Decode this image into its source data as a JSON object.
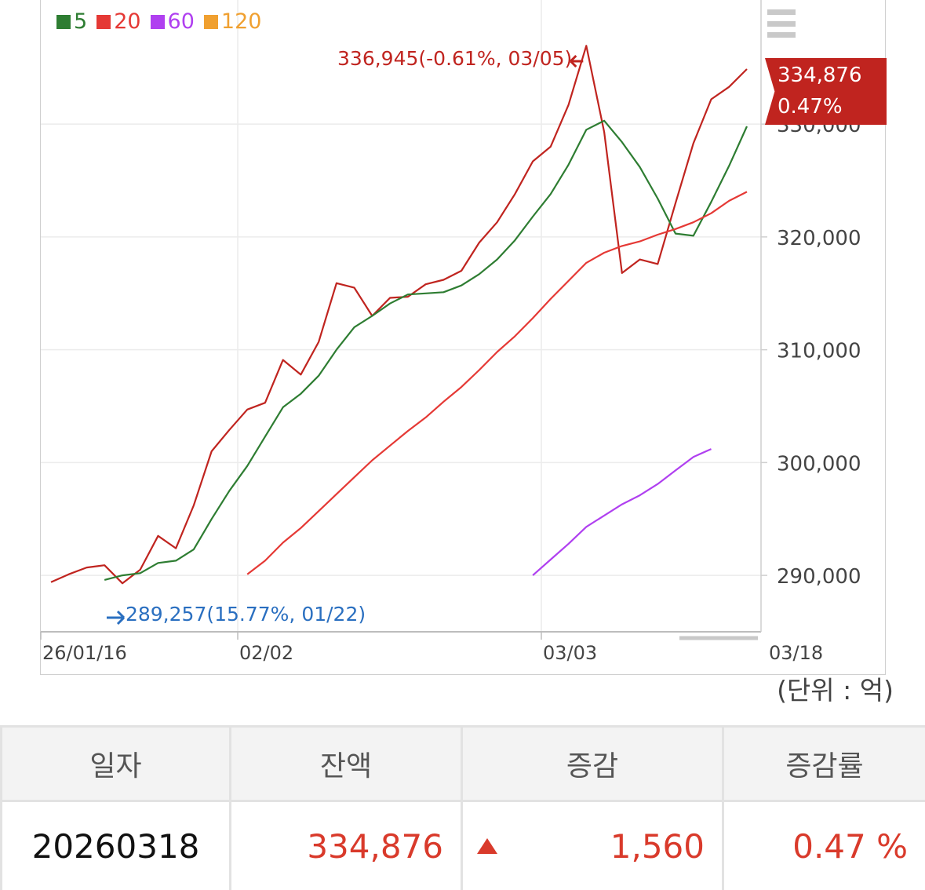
{
  "legend": [
    {
      "label": "5",
      "color": "#2e7d32"
    },
    {
      "label": "20",
      "color": "#e53935"
    },
    {
      "label": "60",
      "color": "#b040f0"
    },
    {
      "label": "120",
      "color": "#f0a030"
    }
  ],
  "price_tag": {
    "value": "334,876",
    "change": "0.47%"
  },
  "annotations": {
    "max_label": "336,945(-0.61%, 03/05)",
    "min_label": "289,257(15.77%, 01/22)"
  },
  "unit_label": "(단위 : 억)",
  "table": {
    "headers": [
      "일자",
      "잔액",
      "증감",
      "증감률"
    ],
    "row": {
      "date": "20260318",
      "balance": "334,876",
      "change": "1,560",
      "rate": "0.47 %"
    }
  },
  "chart_data": {
    "type": "line",
    "x_tick_labels": [
      "26/01/16",
      "02/02",
      "03/03",
      "03/18"
    ],
    "y_tick_labels": [
      "290,000",
      "300,000",
      "310,000",
      "320,000",
      "330,000"
    ],
    "ylim": [
      285000,
      341000
    ],
    "n_points": 40,
    "colors": {
      "price": "#c0241f",
      "ma5": "#2e7d32",
      "ma20": "#e53935",
      "ma60": "#b040f0"
    },
    "series": [
      {
        "name": "price",
        "start_index": 0,
        "values": [
          289400,
          290100,
          290700,
          290900,
          289300,
          290500,
          293500,
          292400,
          296200,
          301000,
          302900,
          304700,
          305300,
          309100,
          307800,
          310700,
          315900,
          315500,
          313000,
          314600,
          314700,
          315800,
          316200,
          317000,
          319500,
          321300,
          323800,
          326700,
          328000,
          331700,
          336945,
          329300,
          316800,
          318000,
          317600,
          323000,
          328300,
          332200,
          333300,
          334876
        ]
      },
      {
        "name": "5",
        "start_index": 3,
        "values": [
          289600,
          290000,
          290200,
          291100,
          291300,
          292300,
          295000,
          297500,
          299700,
          302300,
          304900,
          306100,
          307700,
          310000,
          312000,
          313000,
          314100,
          314900,
          315000,
          315100,
          315700,
          316700,
          318000,
          319700,
          321800,
          323800,
          326400,
          329500,
          330300,
          328400,
          326200,
          323400,
          320300,
          320100,
          323100,
          326300,
          329800
        ]
      },
      {
        "name": "20",
        "start_index": 11,
        "values": [
          290100,
          291300,
          292900,
          294200,
          295700,
          297200,
          298700,
          300200,
          301500,
          302800,
          304000,
          305400,
          306700,
          308200,
          309800,
          311200,
          312800,
          314500,
          316100,
          317700,
          318600,
          319200,
          319600,
          320200,
          320700,
          321300,
          322100,
          323200,
          324000
        ]
      },
      {
        "name": "60",
        "start_index": 27,
        "values": [
          290000,
          291400,
          292800,
          294300,
          295300,
          296300,
          297100,
          298100,
          299300,
          300500,
          301200
        ]
      }
    ]
  }
}
